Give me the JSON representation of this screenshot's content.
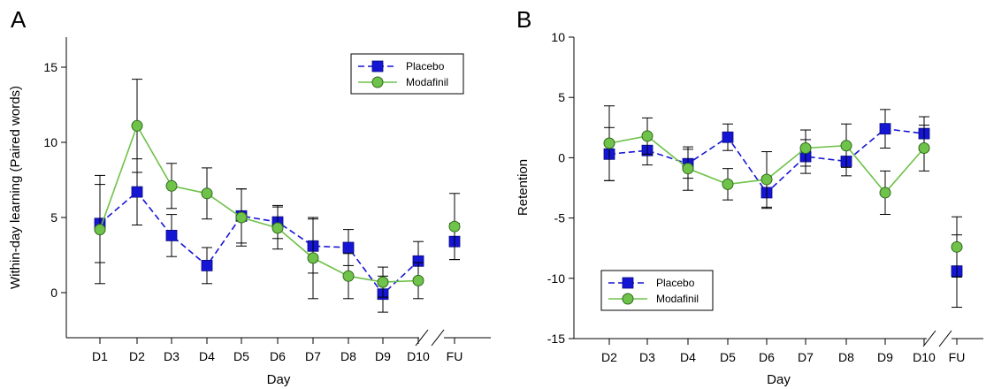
{
  "chart_data": [
    {
      "type": "line",
      "panel_label": "A",
      "xlabel": "Day",
      "ylabel": "Within-day learning (Paired words)",
      "ylim": [
        -3,
        17
      ],
      "yticks": [
        0,
        5,
        10,
        15
      ],
      "categories": [
        "D1",
        "D2",
        "D3",
        "D4",
        "D5",
        "D6",
        "D7",
        "D8",
        "D9",
        "D10",
        "FU"
      ],
      "axis_break_between": [
        "D10",
        "FU"
      ],
      "legend_placement": "top-right",
      "grid": false,
      "series": [
        {
          "name": "Placebo",
          "color": "#1515d4",
          "marker": "square",
          "line_style": "dashed",
          "values": [
            4.6,
            6.7,
            3.8,
            1.8,
            5.1,
            4.7,
            3.1,
            3.0,
            -0.1,
            2.1,
            3.4
          ],
          "error": [
            2.6,
            2.2,
            1.4,
            1.2,
            1.8,
            1.1,
            1.8,
            1.2,
            1.2,
            1.3,
            1.2
          ],
          "connect_to_index": 9
        },
        {
          "name": "Modafinil",
          "color": "#6fc24a",
          "marker": "circle",
          "line_style": "solid",
          "values": [
            4.2,
            11.1,
            7.1,
            6.6,
            5.0,
            4.3,
            2.3,
            1.1,
            0.7,
            0.8,
            4.4
          ],
          "error": [
            3.6,
            3.1,
            1.5,
            1.7,
            1.9,
            1.4,
            2.7,
            1.5,
            1.0,
            1.2,
            2.2
          ],
          "connect_to_index": 9
        }
      ]
    },
    {
      "type": "line",
      "panel_label": "B",
      "xlabel": "Day",
      "ylabel": "Retention",
      "ylim": [
        -15,
        10
      ],
      "yticks": [
        -15,
        -10,
        -5,
        0,
        5,
        10
      ],
      "categories": [
        "D2",
        "D3",
        "D4",
        "D5",
        "D6",
        "D7",
        "D8",
        "D9",
        "D10",
        "FU"
      ],
      "axis_break_between": [
        "D10",
        "FU"
      ],
      "legend_placement": "bottom-left",
      "grid": false,
      "series": [
        {
          "name": "Placebo",
          "color": "#1515d4",
          "marker": "square",
          "line_style": "dashed",
          "values": [
            0.3,
            0.6,
            -0.5,
            1.7,
            -2.9,
            0.1,
            -0.3,
            2.4,
            2.0,
            -9.4
          ],
          "error": [
            2.2,
            1.2,
            1.2,
            1.1,
            1.3,
            1.4,
            1.2,
            1.6,
            1.4,
            3.0
          ],
          "connect_to_index": 8
        },
        {
          "name": "Modafinil",
          "color": "#6fc24a",
          "marker": "circle",
          "line_style": "solid",
          "values": [
            1.2,
            1.8,
            -0.9,
            -2.2,
            -1.8,
            0.8,
            1.0,
            -2.9,
            0.8,
            -7.4
          ],
          "error": [
            3.1,
            1.5,
            1.8,
            1.3,
            2.3,
            1.5,
            1.8,
            1.8,
            1.9,
            2.5
          ],
          "connect_to_index": 8
        }
      ]
    }
  ]
}
